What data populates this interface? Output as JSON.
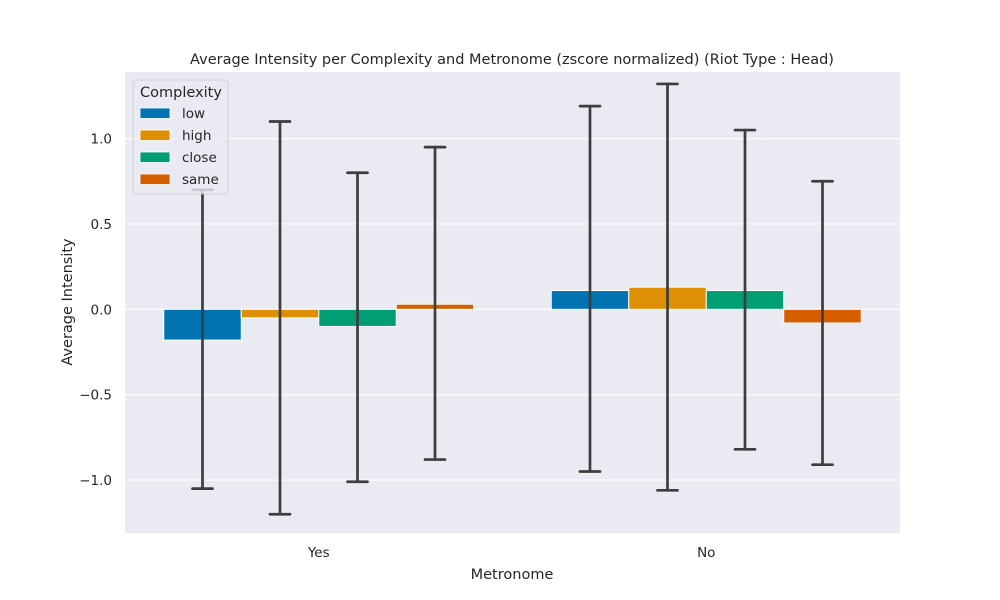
{
  "chart_data": {
    "type": "bar",
    "title": "Average Intensity per Complexity and Metronome (zscore normalized) (Riot Type : Head)",
    "xlabel": "Metronome",
    "ylabel": "Average Intensity",
    "categories": [
      "Yes",
      "No"
    ],
    "ylim": [
      -1.31,
      1.39
    ],
    "yticks": [
      -1.0,
      -0.5,
      0.0,
      0.5,
      1.0
    ],
    "ytick_labels": [
      "−1.0",
      "−0.5",
      "0.0",
      "0.5",
      "1.0"
    ],
    "grid": true,
    "legend": {
      "title": "Complexity",
      "placement": "top-left"
    },
    "series": [
      {
        "name": "low",
        "color": "#0173b2",
        "values": [
          -0.18,
          0.11
        ],
        "ci_low": [
          -1.05,
          -0.95
        ],
        "ci_high": [
          0.7,
          1.19
        ]
      },
      {
        "name": "high",
        "color": "#de8f05",
        "values": [
          -0.05,
          0.13
        ],
        "ci_low": [
          -1.2,
          -1.06
        ],
        "ci_high": [
          1.1,
          1.32
        ]
      },
      {
        "name": "close",
        "color": "#029e73",
        "values": [
          -0.1,
          0.11
        ],
        "ci_low": [
          -1.01,
          -0.82
        ],
        "ci_high": [
          0.8,
          1.05
        ]
      },
      {
        "name": "same",
        "color": "#d55e00",
        "values": [
          0.03,
          -0.08
        ],
        "ci_low": [
          -0.88,
          -0.91
        ],
        "ci_high": [
          0.95,
          0.75
        ]
      }
    ]
  }
}
